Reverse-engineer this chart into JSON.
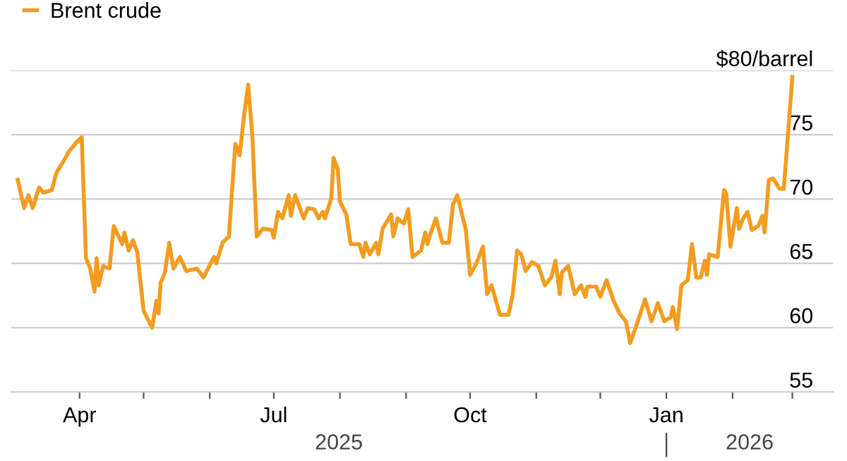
{
  "chart_data": {
    "type": "line",
    "x": [
      "2025-03-03",
      "2025-03-06",
      "2025-03-08",
      "2025-03-10",
      "2025-03-13",
      "2025-03-15",
      "2025-03-19",
      "2025-03-21",
      "2025-03-25",
      "2025-03-27",
      "2025-03-31",
      "2025-04-02",
      "2025-04-04",
      "2025-04-06",
      "2025-04-08",
      "2025-04-09",
      "2025-04-10",
      "2025-04-12",
      "2025-04-15",
      "2025-04-17",
      "2025-04-21",
      "2025-04-22",
      "2025-04-24",
      "2025-04-26",
      "2025-04-28",
      "2025-05-01",
      "2025-05-05",
      "2025-05-07",
      "2025-05-08",
      "2025-05-09",
      "2025-05-11",
      "2025-05-13",
      "2025-05-15",
      "2025-05-18",
      "2025-05-21",
      "2025-05-26",
      "2025-05-29",
      "2025-06-03",
      "2025-06-04",
      "2025-06-07",
      "2025-06-10",
      "2025-06-11",
      "2025-06-13",
      "2025-06-15",
      "2025-06-17",
      "2025-06-19",
      "2025-06-21",
      "2025-06-23",
      "2025-06-26",
      "2025-06-30",
      "2025-07-01",
      "2025-07-03",
      "2025-07-05",
      "2025-07-08",
      "2025-07-09",
      "2025-07-11",
      "2025-07-15",
      "2025-07-17",
      "2025-07-20",
      "2025-07-22",
      "2025-07-24",
      "2025-07-25",
      "2025-07-28",
      "2025-07-29",
      "2025-07-31",
      "2025-08-01",
      "2025-08-04",
      "2025-08-06",
      "2025-08-10",
      "2025-08-12",
      "2025-08-13",
      "2025-08-15",
      "2025-08-18",
      "2025-08-19",
      "2025-08-21",
      "2025-08-25",
      "2025-08-26",
      "2025-08-28",
      "2025-08-31",
      "2025-09-02",
      "2025-09-04",
      "2025-09-08",
      "2025-09-10",
      "2025-09-11",
      "2025-09-12",
      "2025-09-15",
      "2025-09-18",
      "2025-09-21",
      "2025-09-23",
      "2025-09-25",
      "2025-09-29",
      "2025-10-01",
      "2025-10-04",
      "2025-10-07",
      "2025-10-09",
      "2025-10-11",
      "2025-10-15",
      "2025-10-19",
      "2025-10-21",
      "2025-10-23",
      "2025-10-25",
      "2025-10-27",
      "2025-10-30",
      "2025-11-02",
      "2025-11-05",
      "2025-11-08",
      "2025-11-10",
      "2025-11-12",
      "2025-11-13",
      "2025-11-16",
      "2025-11-19",
      "2025-11-22",
      "2025-11-24",
      "2025-11-25",
      "2025-11-29",
      "2025-12-01",
      "2025-12-04",
      "2025-12-07",
      "2025-12-10",
      "2025-12-13",
      "2025-12-15",
      "2025-12-18",
      "2025-12-22",
      "2025-12-25",
      "2025-12-28",
      "2025-12-31",
      "2026-01-03",
      "2026-01-04",
      "2026-01-06",
      "2026-01-08",
      "2026-01-11",
      "2026-01-13",
      "2026-01-15",
      "2026-01-17",
      "2026-01-19",
      "2026-01-20",
      "2026-01-21",
      "2026-01-25",
      "2026-01-28",
      "2026-01-29",
      "2026-01-31",
      "2026-02-03",
      "2026-02-04",
      "2026-02-06",
      "2026-02-08",
      "2026-02-10",
      "2026-02-13",
      "2026-02-15",
      "2026-02-16",
      "2026-02-18",
      "2026-02-20",
      "2026-02-23",
      "2026-02-25",
      "2026-03-01"
    ],
    "series": [
      {
        "name": "Brent crude",
        "color": "#f39c1f",
        "values": [
          71.5,
          69.3,
          70.3,
          69.3,
          70.9,
          70.5,
          70.7,
          72.0,
          73.1,
          73.7,
          74.5,
          74.8,
          65.4,
          64.6,
          62.8,
          65.4,
          63.3,
          64.8,
          64.6,
          67.9,
          66.5,
          67.4,
          66.0,
          66.8,
          65.9,
          61.3,
          60.0,
          62.1,
          61.1,
          63.5,
          64.3,
          66.6,
          64.6,
          65.5,
          64.4,
          64.6,
          63.9,
          65.5,
          65.0,
          66.6,
          67.1,
          69.6,
          74.3,
          73.4,
          76.4,
          78.9,
          74.8,
          67.1,
          67.7,
          67.6,
          67.0,
          69.0,
          68.5,
          70.3,
          68.7,
          70.3,
          68.5,
          69.3,
          69.2,
          68.5,
          69.0,
          68.5,
          70.1,
          73.2,
          72.3,
          69.8,
          68.8,
          66.5,
          66.5,
          65.5,
          66.6,
          65.7,
          66.6,
          65.7,
          67.7,
          68.8,
          67.1,
          68.5,
          68.1,
          69.2,
          65.5,
          66.0,
          67.4,
          66.5,
          67.1,
          68.5,
          66.6,
          66.6,
          69.6,
          70.3,
          67.6,
          64.1,
          65.0,
          66.3,
          62.6,
          63.3,
          61.0,
          61.0,
          62.6,
          66.0,
          65.7,
          64.4,
          65.1,
          64.8,
          63.3,
          63.9,
          65.2,
          62.6,
          64.3,
          64.8,
          62.6,
          63.3,
          62.4,
          63.2,
          63.2,
          62.4,
          63.7,
          62.2,
          61.1,
          60.5,
          58.8,
          60.2,
          62.2,
          60.5,
          61.9,
          60.5,
          60.8,
          61.6,
          59.9,
          63.3,
          63.7,
          66.5,
          63.9,
          63.9,
          65.2,
          64.1,
          65.7,
          65.5,
          70.7,
          70.4,
          66.3,
          69.3,
          67.7,
          68.5,
          69.0,
          67.6,
          67.9,
          68.7,
          67.4,
          71.5,
          71.6,
          70.8,
          70.8,
          79.5
        ]
      }
    ],
    "xlim": [
      "2025-02-28",
      "2026-03-20"
    ],
    "xticks": [
      {
        "value": "2025-04-01",
        "label": "Apr"
      },
      {
        "value": "2025-05-01",
        "label": null
      },
      {
        "value": "2025-06-01",
        "label": null
      },
      {
        "value": "2025-07-01",
        "label": "Jul"
      },
      {
        "value": "2025-08-01",
        "label": null
      },
      {
        "value": "2025-09-01",
        "label": null
      },
      {
        "value": "2025-10-01",
        "label": "Oct"
      },
      {
        "value": "2025-11-01",
        "label": null
      },
      {
        "value": "2025-12-01",
        "label": null
      },
      {
        "value": "2026-01-01",
        "label": "Jan"
      },
      {
        "value": "2026-02-01",
        "label": null
      },
      {
        "value": "2026-03-01",
        "label": null
      }
    ],
    "ylim": [
      55,
      80
    ],
    "yticks": [
      55,
      60,
      65,
      70,
      75,
      {
        "value": 80,
        "label": "$80/barrel"
      }
    ],
    "annotations": [
      "2025",
      "2026"
    ],
    "grid": "y",
    "legend": "top left",
    "marker": "none",
    "line_style": "solid"
  }
}
